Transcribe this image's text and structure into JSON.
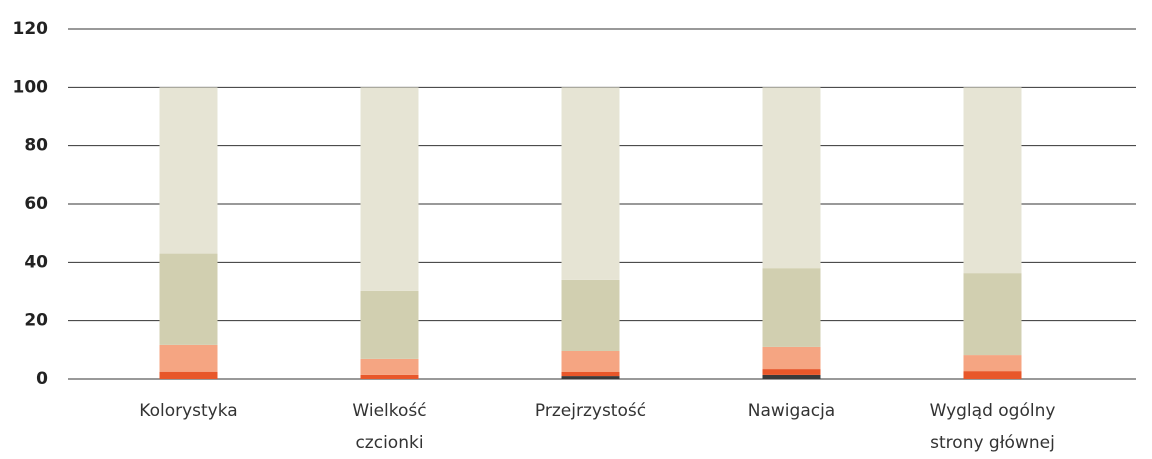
{
  "chart_data": {
    "type": "stacked_bar",
    "categories": [
      "Kolorystyka",
      "Wielkość\nczcionki",
      "Przejrzystość",
      "Nawigacja",
      "Wygląd ogólny\nstrony głównej"
    ],
    "series": [
      {
        "color": "#3a3a3a",
        "values": [
          0,
          0,
          1,
          1.4,
          0
        ]
      },
      {
        "color": "#e8572a",
        "values": [
          2.5,
          1.4,
          1.4,
          2,
          2.7
        ]
      },
      {
        "color": "#f5a582",
        "values": [
          9.2,
          5.5,
          7.2,
          7.6,
          5.5
        ]
      },
      {
        "color": "#d1cfb0",
        "values": [
          31.3,
          23.3,
          24.4,
          27,
          28.1
        ]
      },
      {
        "color": "#e6e4d4",
        "values": [
          57,
          69.8,
          66,
          62,
          63.7
        ]
      }
    ],
    "ylim": [
      0,
      120
    ],
    "yticks": [
      0,
      20,
      40,
      60,
      80,
      100,
      120
    ],
    "grid": true
  }
}
